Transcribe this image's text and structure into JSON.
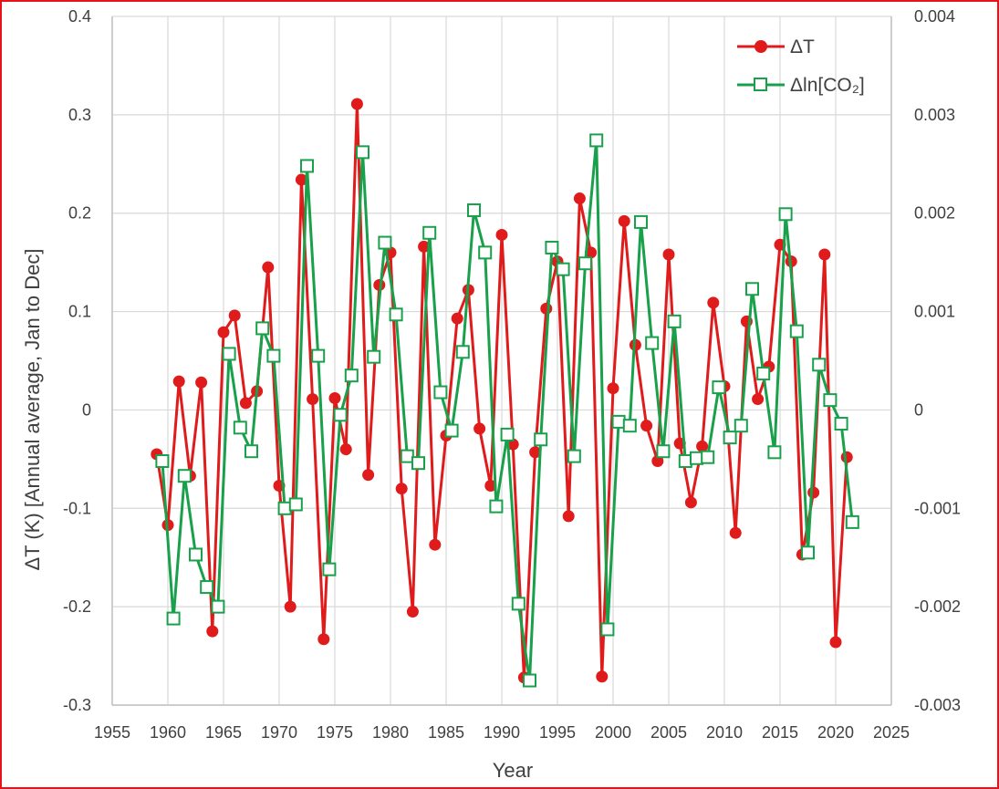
{
  "chart_data": {
    "type": "line",
    "xlabel": "Year",
    "ylabel": "ΔT (K) [Annual average, Jan to Dec]",
    "xlim": [
      1955,
      2025
    ],
    "ylim_left": [
      -0.3,
      0.4
    ],
    "ylim_right": [
      -0.003,
      0.004
    ],
    "x_ticks": [
      "1955",
      "1960",
      "1965",
      "1970",
      "1975",
      "1980",
      "1985",
      "1990",
      "1995",
      "2000",
      "2005",
      "2010",
      "2015",
      "2020",
      "2025"
    ],
    "y_ticks_left": [
      "-0.3",
      "-0.2",
      "-0.1",
      "0",
      "0.1",
      "0.2",
      "0.3",
      "0.4"
    ],
    "y_ticks_right": [
      "-0.003",
      "-0.002",
      "-0.001",
      "0",
      "0.001",
      "0.002",
      "0.003",
      "0.004"
    ],
    "grid": true,
    "legend_position": "top-right",
    "series": [
      {
        "name": "ΔT",
        "axis": "left",
        "color": "#e01b1b",
        "marker": "circle",
        "x": [
          1959,
          1960,
          1961,
          1962,
          1963,
          1964,
          1965,
          1966,
          1967,
          1968,
          1969,
          1970,
          1971,
          1972,
          1973,
          1974,
          1975,
          1976,
          1977,
          1978,
          1979,
          1980,
          1981,
          1982,
          1983,
          1984,
          1985,
          1986,
          1987,
          1988,
          1989,
          1990,
          1991,
          1992,
          1993,
          1994,
          1995,
          1996,
          1997,
          1998,
          1999,
          2000,
          2001,
          2002,
          2003,
          2004,
          2005,
          2006,
          2007,
          2008,
          2009,
          2010,
          2011,
          2012,
          2013,
          2014,
          2015,
          2016,
          2017,
          2018,
          2019,
          2020,
          2021
        ],
        "values": [
          -0.045,
          -0.117,
          0.029,
          -0.067,
          0.028,
          -0.225,
          0.079,
          0.096,
          0.007,
          0.019,
          0.145,
          -0.077,
          -0.2,
          0.234,
          0.011,
          -0.233,
          0.012,
          -0.04,
          0.311,
          -0.066,
          0.127,
          0.16,
          -0.08,
          -0.205,
          0.166,
          -0.137,
          -0.026,
          0.093,
          0.122,
          -0.019,
          -0.077,
          0.178,
          -0.035,
          -0.272,
          -0.043,
          0.103,
          0.151,
          -0.108,
          0.215,
          0.16,
          -0.271,
          0.022,
          0.192,
          0.066,
          -0.016,
          -0.052,
          0.158,
          -0.034,
          -0.094,
          -0.037,
          0.109,
          0.024,
          -0.125,
          0.09,
          0.011,
          0.044,
          0.168,
          0.151,
          -0.147,
          -0.084,
          0.158,
          -0.236,
          -0.048
        ]
      },
      {
        "name": "Δln[CO₂]",
        "axis": "right",
        "color": "#19a04b",
        "marker": "open-square",
        "x": [
          1959.5,
          1960.5,
          1961.5,
          1962.5,
          1963.5,
          1964.5,
          1965.5,
          1966.5,
          1967.5,
          1968.5,
          1969.5,
          1970.5,
          1971.5,
          1972.5,
          1973.5,
          1974.5,
          1975.5,
          1976.5,
          1977.5,
          1978.5,
          1979.5,
          1980.5,
          1981.5,
          1982.5,
          1983.5,
          1984.5,
          1985.5,
          1986.5,
          1987.5,
          1988.5,
          1989.5,
          1990.5,
          1991.5,
          1992.5,
          1993.5,
          1994.5,
          1995.5,
          1996.5,
          1997.5,
          1998.5,
          1999.5,
          2000.5,
          2001.5,
          2002.5,
          2003.5,
          2004.5,
          2005.5,
          2006.5,
          2007.5,
          2008.5,
          2009.5,
          2010.5,
          2011.5,
          2012.5,
          2013.5,
          2014.5,
          2015.5,
          2016.5,
          2017.5,
          2018.5,
          2019.5,
          2020.5,
          2021.5
        ],
        "values": [
          -0.00052,
          -0.00212,
          -0.00067,
          -0.00147,
          -0.0018,
          -0.002,
          0.00057,
          -0.00018,
          -0.00042,
          0.00083,
          0.00055,
          -0.001,
          -0.00096,
          0.00248,
          0.00055,
          -0.00162,
          -5e-05,
          0.00035,
          0.00262,
          0.00054,
          0.0017,
          0.00097,
          -0.00047,
          -0.00054,
          0.0018,
          0.00018,
          -0.00021,
          0.00059,
          0.00203,
          0.0016,
          -0.00098,
          -0.00025,
          -0.00197,
          -0.00275,
          -0.0003,
          0.00165,
          0.00143,
          -0.00047,
          0.00149,
          0.00274,
          -0.00223,
          -0.00012,
          -0.00016,
          0.00191,
          0.00068,
          -0.00042,
          0.0009,
          -0.00052,
          -0.00049,
          -0.00048,
          0.00023,
          -0.00028,
          -0.00016,
          0.00123,
          0.00037,
          -0.00043,
          0.00199,
          0.0008,
          -0.00145,
          0.00046,
          0.0001,
          -0.00014,
          -0.00114
        ]
      }
    ]
  }
}
